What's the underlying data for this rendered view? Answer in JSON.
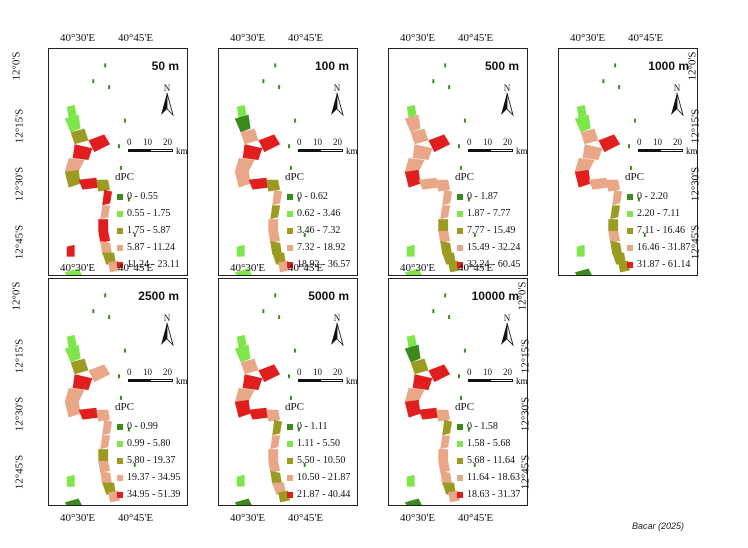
{
  "coords": {
    "lon_west": "40°30'E",
    "lon_east": "40°45'E",
    "lat_0": "12°0'S",
    "lat_15": "12°15'S",
    "lat_30": "12°30'S",
    "lat_45": "12°45'S"
  },
  "north_label": "N",
  "scale": {
    "s0": "0",
    "s10": "10",
    "s20": "20",
    "unit": "km"
  },
  "legend_title": "dPC",
  "class_colors": [
    "#3a8a1e",
    "#7ee64b",
    "#9b9b22",
    "#e8a888",
    "#e01e1e"
  ],
  "panels": [
    {
      "title": "50 m",
      "legend": [
        "0 - 0.55",
        "0.55 - 1.75",
        "1.75 - 5.87",
        "5.87 - 11.24",
        "11.24 - 23.11"
      ]
    },
    {
      "title": "100 m",
      "legend": [
        "0 - 0.62",
        "0.62 - 3.46",
        "3.46 - 7.32",
        "7.32 - 18.92",
        "18.92 - 36.57"
      ]
    },
    {
      "title": "500 m",
      "legend": [
        "0 - 1.87",
        "1.87 - 7.77",
        "7.77 - 15.49",
        "15.49 - 32.24",
        "32.24 - 60.45"
      ]
    },
    {
      "title": "1000 m",
      "legend": [
        "0 - 2.20",
        "2.20 - 7.11",
        "7.11 - 16.46",
        "16.46 - 31.87",
        "31.87 - 61.14"
      ]
    },
    {
      "title": "2500 m",
      "legend": [
        "0 - 0.99",
        "0.99 - 5.80",
        "5.80 - 19.37",
        "19.37 - 34.95",
        "34.95 - 51.39"
      ]
    },
    {
      "title": "5000 m",
      "legend": [
        "0 - 1.11",
        "1.11 - 5.50",
        "5.50 - 10.50",
        "10.50 - 21.87",
        "21.87 - 40.44"
      ]
    },
    {
      "title": "10000 m",
      "legend": [
        "0 - 1.58",
        "1.58 - 5.68",
        "5.68 - 11.64",
        "11.64 - 18.63",
        "18.63 - 31.37"
      ]
    }
  ],
  "credit": "Bacar (2025)"
}
